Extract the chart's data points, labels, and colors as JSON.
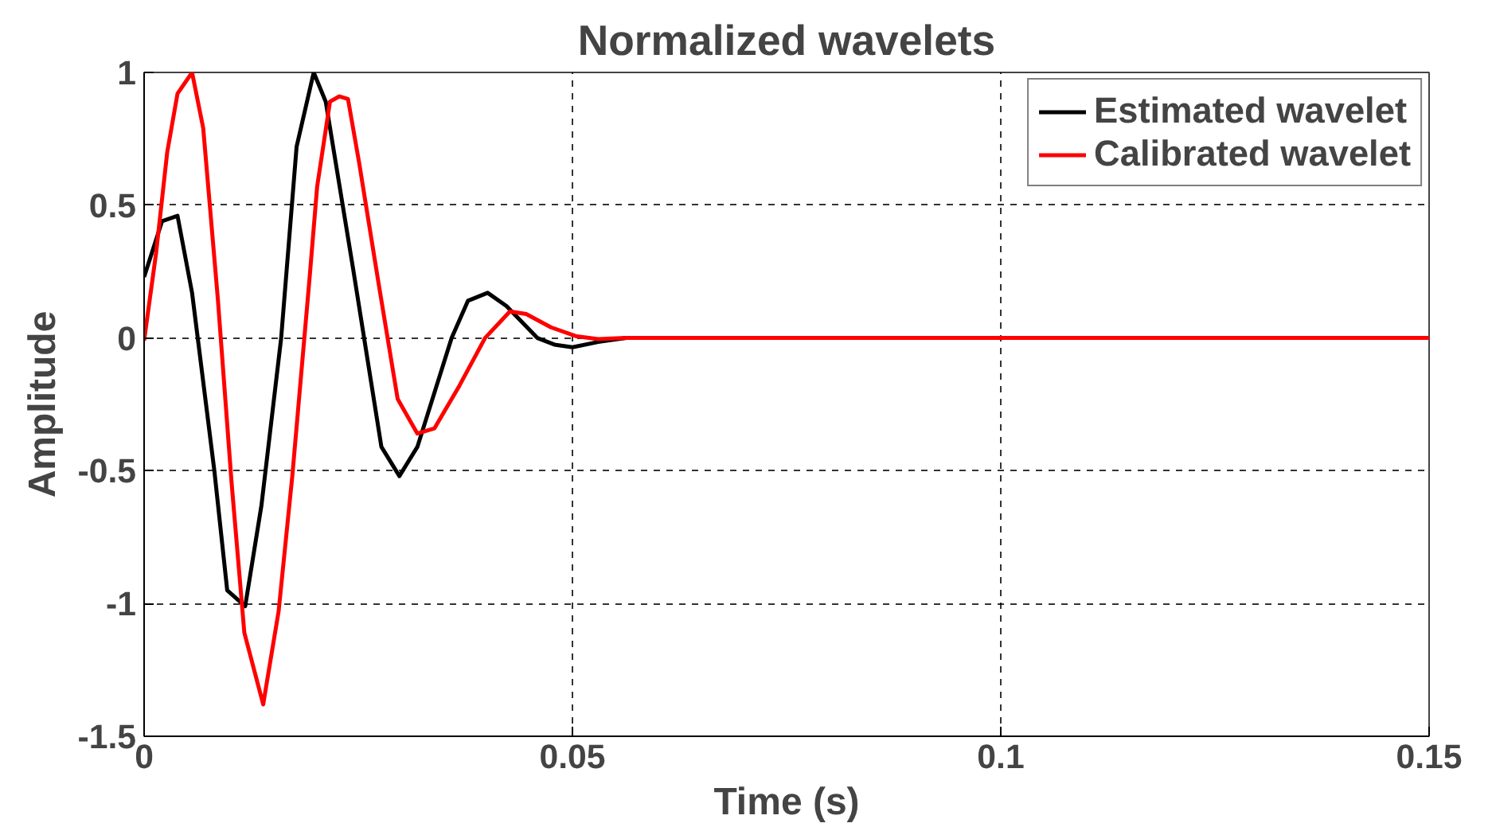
{
  "chart_data": {
    "type": "line",
    "title": "Normalized wavelets",
    "xlabel": "Time (s)",
    "ylabel": "Amplitude",
    "xlim": [
      0,
      0.15
    ],
    "ylim": [
      -1.5,
      1
    ],
    "xticks": [
      0,
      0.05,
      0.1,
      0.15
    ],
    "yticks": [
      -1.5,
      -1,
      -0.5,
      0,
      0.5,
      1
    ],
    "grid": true,
    "legend": "top right",
    "line_style": "solid",
    "series": [
      {
        "name": "Estimated wavelet",
        "color": "#000000",
        "x": [
          0,
          0.0021,
          0.0039,
          0.0056,
          0.0082,
          0.0097,
          0.0118,
          0.0137,
          0.016,
          0.0178,
          0.0198,
          0.0212,
          0.0244,
          0.0277,
          0.0298,
          0.0319,
          0.0359,
          0.0378,
          0.0401,
          0.0423,
          0.0459,
          0.0479,
          0.05,
          0.053,
          0.0563,
          0.15
        ],
        "values": [
          0.23,
          0.44,
          0.46,
          0.17,
          -0.5,
          -0.95,
          -1.01,
          -0.63,
          0,
          0.72,
          1,
          0.89,
          0.26,
          -0.41,
          -0.52,
          -0.41,
          0,
          0.14,
          0.17,
          0.12,
          0,
          -0.025,
          -0.035,
          -0.015,
          0,
          0
        ]
      },
      {
        "name": "Calibrated wavelet",
        "color": "#ff0000",
        "x": [
          0,
          0.0014,
          0.0027,
          0.0039,
          0.0056,
          0.0069,
          0.0086,
          0.0102,
          0.0117,
          0.0139,
          0.0157,
          0.0173,
          0.0193,
          0.0202,
          0.0217,
          0.0228,
          0.0238,
          0.0251,
          0.0274,
          0.0296,
          0.0319,
          0.0339,
          0.0368,
          0.0398,
          0.0427,
          0.0446,
          0.0475,
          0.0505,
          0.053,
          0.0563,
          0.15
        ],
        "values": [
          -0.01,
          0.32,
          0.7,
          0.92,
          1,
          0.79,
          0.15,
          -0.54,
          -1.11,
          -1.38,
          -1.03,
          -0.52,
          0.22,
          0.57,
          0.89,
          0.91,
          0.9,
          0.66,
          0.2,
          -0.23,
          -0.36,
          -0.34,
          -0.18,
          0,
          0.1,
          0.09,
          0.04,
          0.006,
          -0.004,
          0,
          0
        ]
      }
    ]
  }
}
